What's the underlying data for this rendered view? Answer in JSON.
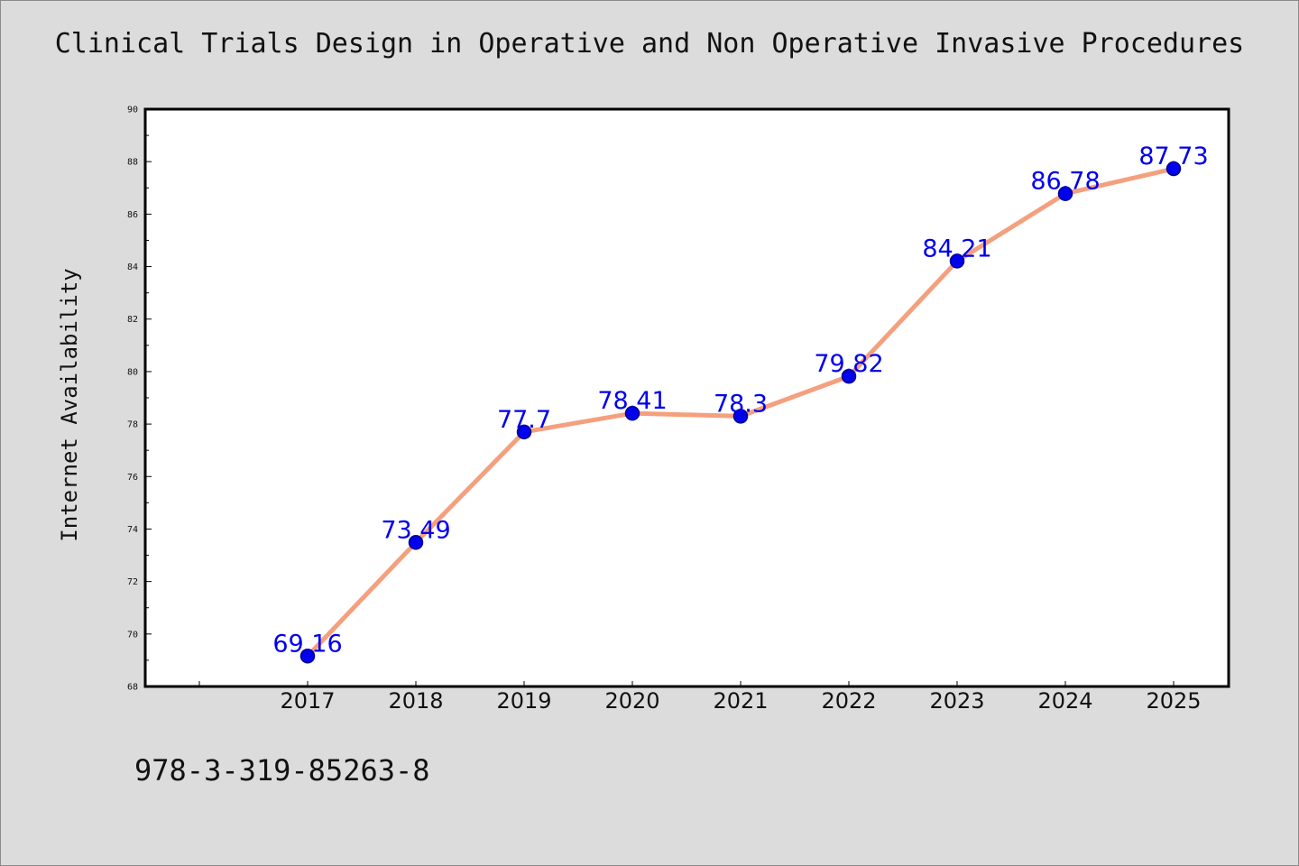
{
  "title": "Clinical Trials Design in Operative and Non Operative Invasive Procedures",
  "footer_code": "978-3-319-85263-8",
  "colors": {
    "background": "#dcdcdc",
    "plot_background": "#ffffff",
    "line": "#f4a07e",
    "marker_fill": "#0000ee",
    "marker_stroke": "#00008b",
    "data_label": "#0000ee",
    "text": "#111111"
  },
  "chart_data": {
    "type": "line",
    "x": [
      "2017",
      "2018",
      "2019",
      "2020",
      "2021",
      "2022",
      "2023",
      "2024",
      "2025"
    ],
    "series": [
      {
        "values": [
          69.16,
          73.49,
          77.7,
          78.41,
          78.3,
          79.82,
          84.21,
          86.78,
          87.73
        ],
        "labels": [
          "69.16",
          "73.49",
          "77.7",
          "78.41",
          "78.3",
          "79.82",
          "84.21",
          "86.78",
          "87.73"
        ]
      }
    ],
    "title": "Clinical Trials Design in Operative and Non Operative Invasive Procedures",
    "xlabel": "",
    "ylabel": "Internet Availability",
    "ylim": [
      68,
      90
    ],
    "yticks": [
      68,
      70,
      72,
      74,
      76,
      78,
      80,
      82,
      84,
      86,
      88,
      90
    ],
    "ytick_labels": [
      "68",
      "70",
      "72",
      "74",
      "76",
      "78",
      "80",
      "82",
      "84",
      "86",
      "88",
      "90"
    ],
    "grid": false,
    "legend": false
  }
}
